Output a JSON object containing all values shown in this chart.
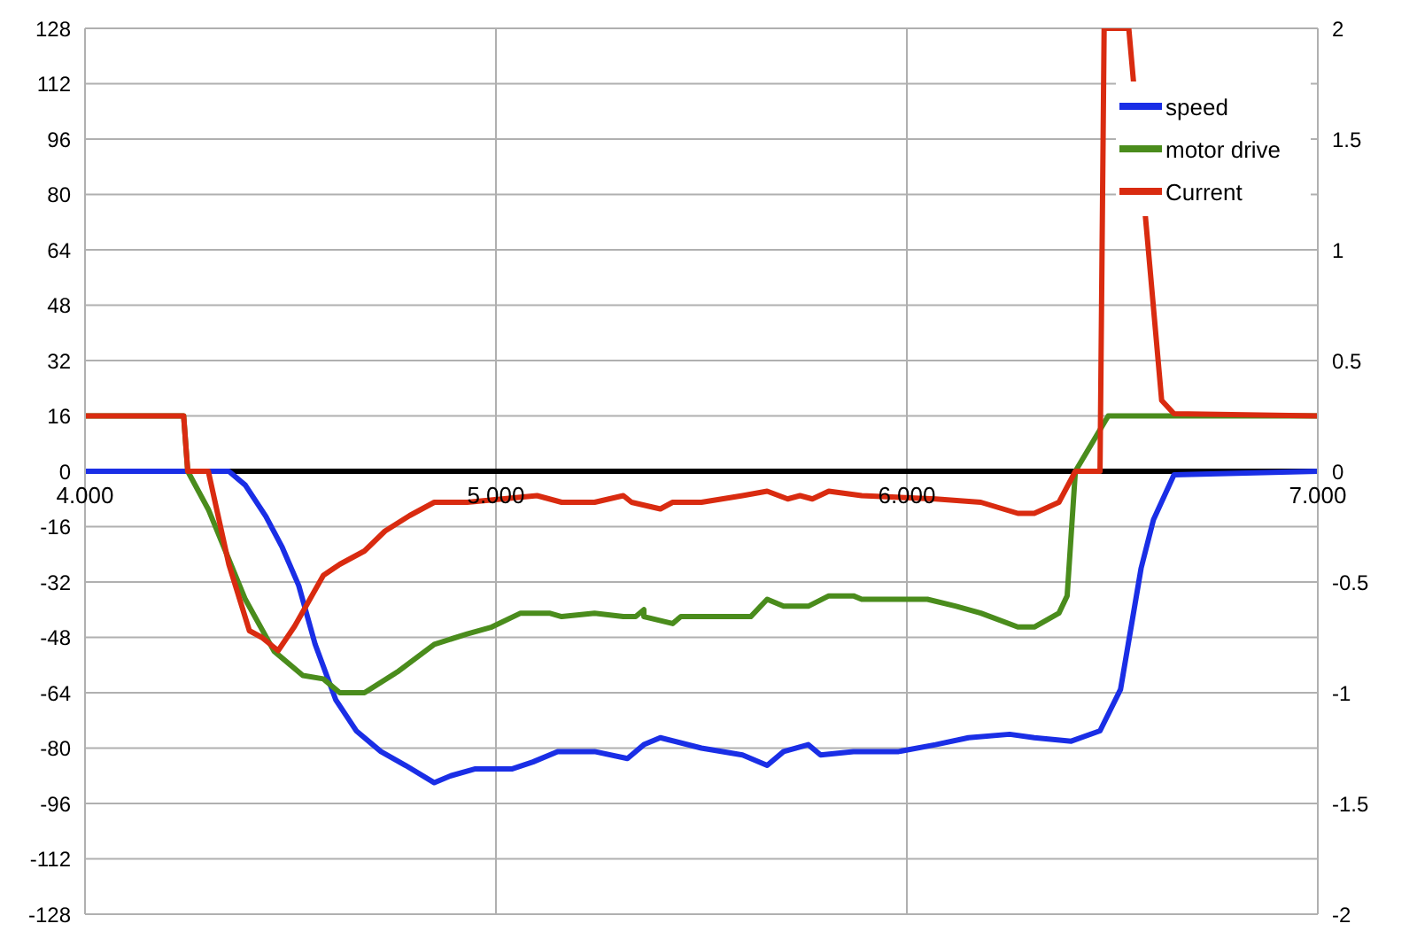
{
  "chart_data": {
    "type": "line",
    "xlim": [
      4,
      7
    ],
    "xticks": [
      {
        "value": 4,
        "label": "4.000"
      },
      {
        "value": 5,
        "label": "5.000"
      },
      {
        "value": 6,
        "label": "6.000"
      },
      {
        "value": 7,
        "label": "7.000"
      }
    ],
    "ylim": [
      -128,
      128
    ],
    "yticks": [
      -128,
      -112,
      -96,
      -80,
      -64,
      -48,
      -32,
      -16,
      0,
      16,
      32,
      48,
      64,
      80,
      96,
      112,
      128
    ],
    "y2lim": [
      -2,
      2
    ],
    "y2ticks": [
      -2,
      -1.5,
      -1,
      -0.5,
      0,
      0.5,
      1,
      1.5,
      2
    ],
    "grid": true,
    "legend": "top right",
    "marker": "none",
    "line_style": "solid",
    "series": [
      {
        "name": "speed",
        "color": "#1a2ee6",
        "x": [
          4,
          4.35,
          4.39,
          4.44,
          4.48,
          4.52,
          4.56,
          4.61,
          4.66,
          4.72,
          4.78,
          4.85,
          4.89,
          4.95,
          4.99,
          5.04,
          5.09,
          5.15,
          5.24,
          5.32,
          5.36,
          5.4,
          5.5,
          5.6,
          5.66,
          5.7,
          5.76,
          5.79,
          5.87,
          5.98,
          6.07,
          6.15,
          6.25,
          6.31,
          6.4,
          6.47,
          6.52,
          6.57,
          6.6,
          6.65,
          7
        ],
        "values": [
          0,
          0,
          -4,
          -13,
          -22,
          -33,
          -50,
          -66,
          -75,
          -81,
          -85,
          -90,
          -88,
          -86,
          -86,
          -86,
          -84,
          -81,
          -81,
          -83,
          -79,
          -77,
          -80,
          -82,
          -85,
          -81,
          -79,
          -82,
          -81,
          -81,
          -79,
          -77,
          -76,
          -77,
          -78,
          -75,
          -63,
          -28,
          -14,
          -1,
          0
        ]
      },
      {
        "name": "motor drive",
        "color": "#4a8c1c",
        "x": [
          4,
          4.24,
          4.25,
          4.3,
          4.39,
          4.46,
          4.53,
          4.58,
          4.62,
          4.68,
          4.76,
          4.85,
          4.93,
          4.99,
          5.06,
          5.13,
          5.16,
          5.24,
          5.31,
          5.34,
          5.36,
          5.36,
          5.43,
          5.45,
          5.62,
          5.66,
          5.7,
          5.76,
          5.81,
          5.87,
          5.89,
          6.05,
          6.12,
          6.18,
          6.27,
          6.31,
          6.37,
          6.39,
          6.41,
          6.49,
          7
        ],
        "values": [
          16,
          16,
          0,
          -11,
          -37,
          -52,
          -59,
          -60,
          -64,
          -64,
          -58,
          -50,
          -47,
          -45,
          -41,
          -41,
          -42,
          -41,
          -42,
          -42,
          -40,
          -42,
          -44,
          -42,
          -42,
          -37,
          -39,
          -39,
          -36,
          -36,
          -37,
          -37,
          -39,
          -41,
          -45,
          -45,
          -41,
          -36,
          0,
          16,
          16
        ]
      },
      {
        "name": "Current",
        "color": "#d92b10",
        "axis": "y2",
        "x": [
          4,
          4.24,
          4.25,
          4.3,
          4.35,
          4.4,
          4.43,
          4.47,
          4.51,
          4.58,
          4.62,
          4.68,
          4.73,
          4.79,
          4.85,
          4.93,
          5.1,
          5.16,
          5.24,
          5.31,
          5.33,
          5.4,
          5.43,
          5.5,
          5.6,
          5.66,
          5.71,
          5.74,
          5.77,
          5.81,
          5.89,
          6.07,
          6.18,
          6.27,
          6.31,
          6.37,
          6.41,
          6.47,
          6.48,
          6.54,
          6.62,
          6.65,
          7
        ],
        "values": [
          0.25,
          0.25,
          0,
          0,
          -0.42,
          -0.72,
          -0.75,
          -0.81,
          -0.7,
          -0.47,
          -0.42,
          -0.36,
          -0.27,
          -0.2,
          -0.14,
          -0.14,
          -0.11,
          -0.14,
          -0.14,
          -0.11,
          -0.14,
          -0.17,
          -0.14,
          -0.14,
          -0.11,
          -0.09,
          -0.125,
          -0.11,
          -0.125,
          -0.09,
          -0.11,
          -0.125,
          -0.14,
          -0.19,
          -0.19,
          -0.14,
          0,
          0,
          2,
          2,
          0.32,
          0.26,
          0.25
        ]
      }
    ]
  }
}
